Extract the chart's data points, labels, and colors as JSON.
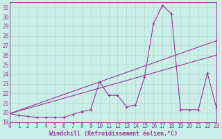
{
  "xlabel": "Windchill (Refroidissement éolien,°C)",
  "background_color": "#cceee8",
  "grid_color": "#aaddcc",
  "line_color": "#993399",
  "xmin": 0,
  "xmax": 23,
  "ymin": 19,
  "ymax": 31.5,
  "yticks": [
    19,
    20,
    21,
    22,
    23,
    24,
    25,
    26,
    27,
    28,
    29,
    30,
    31
  ],
  "xticks": [
    0,
    1,
    2,
    3,
    4,
    5,
    6,
    7,
    8,
    9,
    10,
    11,
    12,
    13,
    14,
    15,
    16,
    17,
    18,
    19,
    20,
    21,
    22,
    23
  ],
  "series1_x": [
    0,
    1,
    2,
    3,
    4,
    5,
    6,
    7,
    8,
    9,
    10,
    11,
    12,
    13,
    14,
    15,
    16,
    17,
    18,
    19,
    20,
    21,
    22,
    23
  ],
  "series1_y": [
    19.9,
    19.7,
    19.6,
    19.5,
    19.5,
    19.5,
    19.5,
    19.8,
    20.1,
    20.3,
    23.2,
    21.8,
    21.8,
    20.6,
    20.8,
    23.7,
    29.3,
    31.2,
    30.3,
    20.3,
    20.3,
    20.3,
    24.1,
    20.5
  ],
  "series2_x": [
    0,
    23
  ],
  "series2_y": [
    19.9,
    27.5
  ],
  "series3_x": [
    0,
    23
  ],
  "series3_y": [
    19.9,
    26.0
  ],
  "xlabel_fontsize": 6,
  "tick_fontsize": 5.5
}
